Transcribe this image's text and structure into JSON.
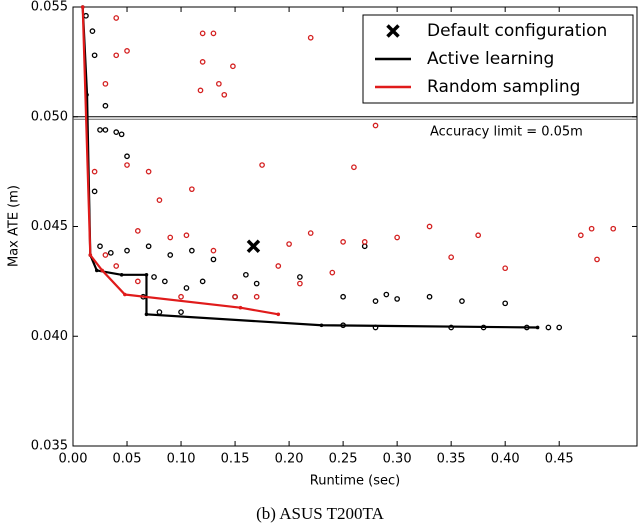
{
  "chart_data": {
    "type": "scatter",
    "xlabel": "Runtime (sec)",
    "ylabel": "Max ATE (m)",
    "caption": "(b) ASUS T200TA",
    "xlim": [
      0,
      0.522
    ],
    "ylim": [
      0.035,
      0.055
    ],
    "xticks": [
      {
        "value": 0,
        "label": "0.00"
      },
      0.05,
      {
        "value": 0.1,
        "label": "0.10"
      },
      0.15,
      {
        "value": 0.2,
        "label": "0.20"
      },
      0.25,
      {
        "value": 0.3,
        "label": "0.30"
      },
      0.35,
      {
        "value": 0.4,
        "label": "0.40"
      },
      0.45
    ],
    "yticks": [
      {
        "value": 0.035,
        "label": "0.035"
      },
      {
        "value": 0.04,
        "label": "0.040"
      },
      0.045,
      {
        "value": 0.05,
        "label": "0.050"
      },
      0.055
    ],
    "hline": {
      "value": 0.05,
      "text": "Accuracy limit = 0.05m"
    },
    "legend": "upper right",
    "series": [
      {
        "color": "#000000",
        "style": "points",
        "x": [
          0.012,
          0.018,
          0.02,
          0.03,
          0.025,
          0.03,
          0.04,
          0.045,
          0.05,
          0.02,
          0.025,
          0.035,
          0.05,
          0.07,
          0.09,
          0.11,
          0.13,
          0.075,
          0.085,
          0.105,
          0.12,
          0.16,
          0.21,
          0.25,
          0.28,
          0.3,
          0.33,
          0.36,
          0.4,
          0.065,
          0.08,
          0.1,
          0.15,
          0.17,
          0.29,
          0.45,
          0.44,
          0.35,
          0.28,
          0.25,
          0.27,
          0.38,
          0.42
        ],
        "values": [
          0.0546,
          0.0539,
          0.0528,
          0.0505,
          0.0494,
          0.0494,
          0.0493,
          0.0492,
          0.0482,
          0.0466,
          0.0441,
          0.0438,
          0.0439,
          0.0441,
          0.0437,
          0.0439,
          0.0435,
          0.0427,
          0.0425,
          0.0422,
          0.0425,
          0.0428,
          0.0427,
          0.0418,
          0.0416,
          0.0417,
          0.0418,
          0.0416,
          0.0415,
          0.0418,
          0.0411,
          0.0411,
          0.0418,
          0.0424,
          0.0419,
          0.0404,
          0.0404,
          0.0404,
          0.0404,
          0.0405,
          0.0441,
          0.0404,
          0.0404
        ]
      },
      {
        "color": "#d42020",
        "style": "points",
        "x": [
          0.04,
          0.04,
          0.05,
          0.12,
          0.13,
          0.12,
          0.148,
          0.135,
          0.14,
          0.118,
          0.22,
          0.28,
          0.26,
          0.03,
          0.02,
          0.05,
          0.07,
          0.06,
          0.08,
          0.105,
          0.11,
          0.175,
          0.2,
          0.19,
          0.22,
          0.25,
          0.27,
          0.24,
          0.3,
          0.33,
          0.35,
          0.375,
          0.4,
          0.48,
          0.5,
          0.47,
          0.485,
          0.03,
          0.04,
          0.06,
          0.1,
          0.15,
          0.21,
          0.13,
          0.09,
          0.17
        ],
        "values": [
          0.0545,
          0.0528,
          0.053,
          0.0538,
          0.0538,
          0.0525,
          0.0523,
          0.0515,
          0.051,
          0.0512,
          0.0536,
          0.0496,
          0.0477,
          0.0515,
          0.0475,
          0.0478,
          0.0475,
          0.0448,
          0.0462,
          0.0446,
          0.0467,
          0.0478,
          0.0442,
          0.0432,
          0.0447,
          0.0443,
          0.0443,
          0.0429,
          0.0445,
          0.045,
          0.0436,
          0.0446,
          0.0431,
          0.0449,
          0.0449,
          0.0446,
          0.0435,
          0.0437,
          0.0432,
          0.0425,
          0.0418,
          0.0418,
          0.0424,
          0.0439,
          0.0445,
          0.0418
        ]
      },
      {
        "name": "Default configuration",
        "color": "#000000",
        "style": "marker",
        "x": [
          0.167
        ],
        "values": [
          0.0441
        ]
      },
      {
        "name": "Active learning",
        "color": "#000000",
        "style": "line",
        "x": [
          0.009,
          0.013,
          0.016,
          0.022,
          0.045,
          0.068,
          0.068,
          0.23,
          0.43
        ],
        "values": [
          0.055,
          0.051,
          0.0437,
          0.043,
          0.0428,
          0.0428,
          0.041,
          0.0405,
          0.0404
        ]
      },
      {
        "name": "Random sampling",
        "color": "#e01b1b",
        "style": "line",
        "x": [
          0.009,
          0.016,
          0.027,
          0.048,
          0.155,
          0.19
        ],
        "values": [
          0.055,
          0.0437,
          0.043,
          0.0419,
          0.0413,
          0.041
        ]
      }
    ]
  }
}
